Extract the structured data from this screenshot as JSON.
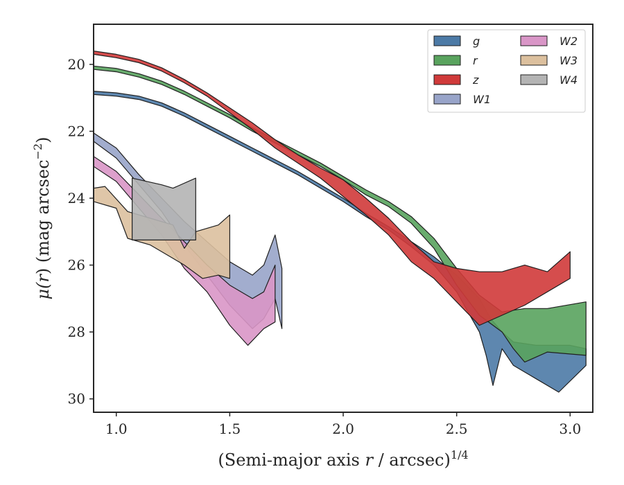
{
  "chart_data": {
    "type": "area",
    "xlabel": {
      "pre": "(Semi-major axis ",
      "var": "r",
      "post": " / arcsec)",
      "sup": "1/4"
    },
    "ylabel": {
      "pre": "μ(",
      "var": "r",
      "post": ") (mag arcsec",
      "sup": "−2",
      "close": ")"
    },
    "xlim": [
      0.9,
      3.1
    ],
    "ylim": [
      30.4,
      18.8
    ],
    "y_inverted": true,
    "xticks": [
      1.0,
      1.5,
      2.0,
      2.5,
      3.0
    ],
    "xtick_labels": [
      "1.0",
      "1.5",
      "2.0",
      "2.5",
      "3.0"
    ],
    "yticks": [
      20,
      22,
      24,
      26,
      28,
      30
    ],
    "ytick_labels": [
      "20",
      "22",
      "24",
      "26",
      "28",
      "30"
    ],
    "grid": false,
    "legend": {
      "placement": "top-right",
      "columns": 2
    },
    "series": [
      {
        "name": "g",
        "color": "#4c7aa6",
        "upper": [
          [
            0.9,
            20.8
          ],
          [
            1.0,
            20.85
          ],
          [
            1.1,
            20.95
          ],
          [
            1.2,
            21.15
          ],
          [
            1.3,
            21.45
          ],
          [
            1.4,
            21.8
          ],
          [
            1.5,
            22.15
          ],
          [
            1.6,
            22.5
          ],
          [
            1.7,
            22.85
          ],
          [
            1.8,
            23.2
          ],
          [
            1.9,
            23.6
          ],
          [
            2.0,
            24.0
          ],
          [
            2.1,
            24.45
          ],
          [
            2.2,
            24.85
          ],
          [
            2.3,
            25.3
          ],
          [
            2.4,
            25.75
          ],
          [
            2.5,
            26.3
          ],
          [
            2.6,
            27.0
          ],
          [
            2.65,
            27.6
          ],
          [
            2.7,
            28.0
          ],
          [
            2.75,
            28.3
          ],
          [
            2.85,
            28.4
          ],
          [
            3.0,
            28.4
          ],
          [
            3.07,
            28.5
          ]
        ],
        "lower": [
          [
            0.9,
            20.9
          ],
          [
            1.0,
            20.95
          ],
          [
            1.1,
            21.05
          ],
          [
            1.2,
            21.25
          ],
          [
            1.3,
            21.55
          ],
          [
            1.4,
            21.9
          ],
          [
            1.5,
            22.25
          ],
          [
            1.6,
            22.6
          ],
          [
            1.7,
            22.95
          ],
          [
            1.8,
            23.3
          ],
          [
            1.9,
            23.7
          ],
          [
            2.0,
            24.1
          ],
          [
            2.1,
            24.55
          ],
          [
            2.2,
            24.95
          ],
          [
            2.3,
            25.45
          ],
          [
            2.4,
            26.0
          ],
          [
            2.5,
            26.8
          ],
          [
            2.6,
            28.0
          ],
          [
            2.63,
            28.7
          ],
          [
            2.66,
            29.6
          ],
          [
            2.7,
            28.5
          ],
          [
            2.75,
            29.0
          ],
          [
            2.85,
            29.4
          ],
          [
            2.95,
            29.8
          ],
          [
            3.07,
            29.0
          ]
        ]
      },
      {
        "name": "r",
        "color": "#59a35e",
        "upper": [
          [
            0.9,
            20.05
          ],
          [
            1.0,
            20.12
          ],
          [
            1.1,
            20.28
          ],
          [
            1.2,
            20.5
          ],
          [
            1.3,
            20.8
          ],
          [
            1.4,
            21.15
          ],
          [
            1.5,
            21.5
          ],
          [
            1.6,
            21.9
          ],
          [
            1.7,
            22.25
          ],
          [
            1.8,
            22.6
          ],
          [
            1.9,
            22.95
          ],
          [
            2.0,
            23.35
          ],
          [
            2.1,
            23.75
          ],
          [
            2.2,
            24.1
          ],
          [
            2.3,
            24.55
          ],
          [
            2.4,
            25.2
          ],
          [
            2.5,
            26.1
          ],
          [
            2.6,
            26.9
          ],
          [
            2.7,
            27.4
          ],
          [
            2.8,
            27.3
          ],
          [
            2.9,
            27.3
          ],
          [
            3.07,
            27.1
          ]
        ],
        "lower": [
          [
            0.9,
            20.15
          ],
          [
            1.0,
            20.22
          ],
          [
            1.1,
            20.38
          ],
          [
            1.2,
            20.6
          ],
          [
            1.3,
            20.9
          ],
          [
            1.4,
            21.25
          ],
          [
            1.5,
            21.6
          ],
          [
            1.6,
            22.0
          ],
          [
            1.7,
            22.35
          ],
          [
            1.8,
            22.7
          ],
          [
            1.9,
            23.05
          ],
          [
            2.0,
            23.45
          ],
          [
            2.1,
            23.9
          ],
          [
            2.2,
            24.25
          ],
          [
            2.3,
            24.75
          ],
          [
            2.4,
            25.5
          ],
          [
            2.5,
            26.6
          ],
          [
            2.6,
            27.5
          ],
          [
            2.7,
            28.0
          ],
          [
            2.75,
            28.5
          ],
          [
            2.8,
            28.9
          ],
          [
            2.9,
            28.6
          ],
          [
            3.07,
            28.7
          ]
        ]
      },
      {
        "name": "z",
        "color": "#d03a3a",
        "upper": [
          [
            0.9,
            19.6
          ],
          [
            1.0,
            19.7
          ],
          [
            1.1,
            19.85
          ],
          [
            1.2,
            20.1
          ],
          [
            1.3,
            20.45
          ],
          [
            1.4,
            20.85
          ],
          [
            1.5,
            21.3
          ],
          [
            1.6,
            21.75
          ],
          [
            1.7,
            22.25
          ],
          [
            1.8,
            22.7
          ],
          [
            1.9,
            23.1
          ],
          [
            2.0,
            23.45
          ],
          [
            2.1,
            24.0
          ],
          [
            2.2,
            24.6
          ],
          [
            2.3,
            25.3
          ],
          [
            2.4,
            25.9
          ],
          [
            2.5,
            26.1
          ],
          [
            2.6,
            26.2
          ],
          [
            2.7,
            26.2
          ],
          [
            2.8,
            26.0
          ],
          [
            2.9,
            26.2
          ],
          [
            3.0,
            25.6
          ]
        ],
        "lower": [
          [
            0.9,
            19.7
          ],
          [
            1.0,
            19.8
          ],
          [
            1.1,
            19.95
          ],
          [
            1.2,
            20.2
          ],
          [
            1.3,
            20.55
          ],
          [
            1.4,
            20.95
          ],
          [
            1.5,
            21.45
          ],
          [
            1.6,
            21.95
          ],
          [
            1.7,
            22.5
          ],
          [
            1.8,
            22.95
          ],
          [
            1.9,
            23.4
          ],
          [
            2.0,
            23.95
          ],
          [
            2.1,
            24.5
          ],
          [
            2.2,
            25.1
          ],
          [
            2.3,
            25.9
          ],
          [
            2.4,
            26.4
          ],
          [
            2.5,
            27.1
          ],
          [
            2.6,
            27.8
          ],
          [
            2.7,
            27.5
          ],
          [
            2.8,
            27.2
          ],
          [
            2.9,
            26.8
          ],
          [
            3.0,
            26.4
          ]
        ]
      },
      {
        "name": "W1",
        "color": "#98a4c9",
        "upper": [
          [
            0.9,
            22.05
          ],
          [
            1.0,
            22.5
          ],
          [
            1.1,
            23.3
          ],
          [
            1.2,
            24.0
          ],
          [
            1.3,
            24.7
          ],
          [
            1.4,
            25.3
          ],
          [
            1.5,
            25.9
          ],
          [
            1.6,
            26.3
          ],
          [
            1.65,
            26.0
          ],
          [
            1.7,
            25.1
          ],
          [
            1.73,
            26.1
          ]
        ],
        "lower": [
          [
            0.9,
            22.3
          ],
          [
            1.0,
            22.8
          ],
          [
            1.1,
            23.6
          ],
          [
            1.2,
            24.4
          ],
          [
            1.3,
            25.4
          ],
          [
            1.4,
            26.3
          ],
          [
            1.5,
            27.2
          ],
          [
            1.6,
            27.9
          ],
          [
            1.65,
            27.6
          ],
          [
            1.7,
            27.0
          ],
          [
            1.73,
            27.9
          ]
        ]
      },
      {
        "name": "W2",
        "color": "#d996c7",
        "upper": [
          [
            0.9,
            22.75
          ],
          [
            1.0,
            23.2
          ],
          [
            1.1,
            23.9
          ],
          [
            1.2,
            24.6
          ],
          [
            1.3,
            25.3
          ],
          [
            1.4,
            26.0
          ],
          [
            1.5,
            26.6
          ],
          [
            1.6,
            27.0
          ],
          [
            1.65,
            26.8
          ],
          [
            1.7,
            26.0
          ]
        ],
        "lower": [
          [
            0.9,
            23.05
          ],
          [
            1.0,
            23.5
          ],
          [
            1.1,
            24.3
          ],
          [
            1.2,
            25.1
          ],
          [
            1.3,
            26.1
          ],
          [
            1.4,
            26.8
          ],
          [
            1.5,
            27.8
          ],
          [
            1.58,
            28.4
          ],
          [
            1.65,
            27.9
          ],
          [
            1.7,
            27.7
          ]
        ]
      },
      {
        "name": "W3",
        "color": "#dcc09e",
        "upper": [
          [
            0.9,
            23.7
          ],
          [
            0.95,
            23.65
          ],
          [
            1.05,
            24.4
          ],
          [
            1.15,
            24.6
          ],
          [
            1.25,
            24.8
          ],
          [
            1.3,
            25.5
          ],
          [
            1.35,
            25.0
          ],
          [
            1.45,
            24.8
          ],
          [
            1.5,
            24.5
          ]
        ],
        "lower": [
          [
            0.9,
            24.1
          ],
          [
            1.0,
            24.3
          ],
          [
            1.05,
            25.2
          ],
          [
            1.15,
            25.4
          ],
          [
            1.25,
            25.8
          ],
          [
            1.3,
            26.0
          ],
          [
            1.38,
            26.4
          ],
          [
            1.45,
            26.3
          ],
          [
            1.5,
            26.4
          ]
        ]
      },
      {
        "name": "W4",
        "color": "#b4b4b4",
        "upper": [
          [
            1.07,
            23.4
          ],
          [
            1.2,
            23.6
          ],
          [
            1.25,
            23.7
          ],
          [
            1.35,
            23.4
          ]
        ],
        "lower": [
          [
            1.07,
            25.25
          ],
          [
            1.2,
            25.25
          ],
          [
            1.25,
            25.25
          ],
          [
            1.35,
            25.25
          ]
        ]
      }
    ]
  }
}
